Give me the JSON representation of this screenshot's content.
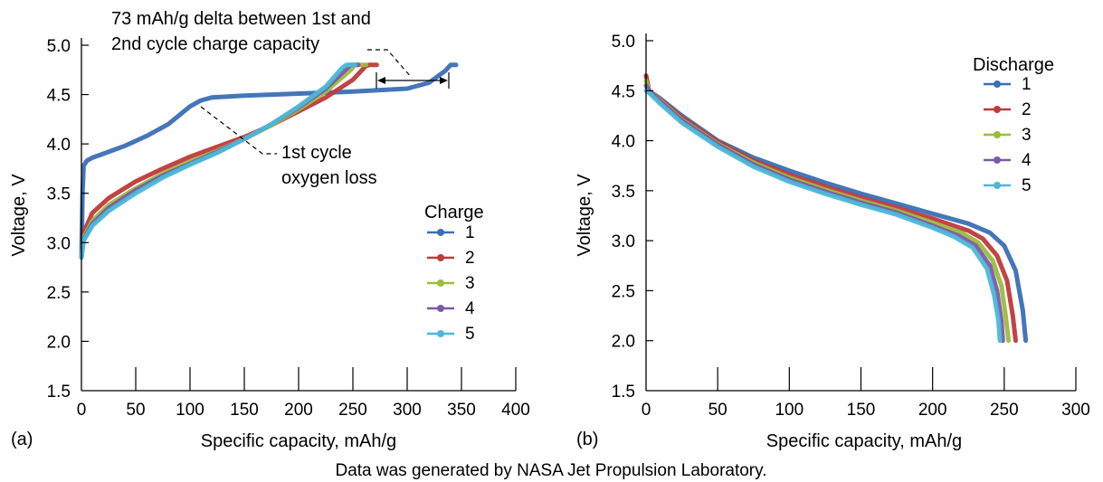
{
  "caption": "Data was generated by NASA Jet Propulsion Laboratory.",
  "chart_data": [
    {
      "panel_label": "(a)",
      "type": "line",
      "title": "",
      "xlabel": "Specific capacity, mAh/g",
      "ylabel": "Voltage, V",
      "xlim": [
        0,
        400
      ],
      "ylim": [
        1.5,
        5.0
      ],
      "xticks": [
        0,
        50,
        100,
        150,
        200,
        250,
        300,
        350,
        400
      ],
      "yticks": [
        1.5,
        2.0,
        2.5,
        3.0,
        3.5,
        4.0,
        4.5,
        5.0
      ],
      "grid": false,
      "legend": {
        "title": "Charge",
        "position": "right"
      },
      "annotations": [
        {
          "text_lines": [
            "73 mAh/g delta between 1st and",
            "2nd cycle charge capacity"
          ]
        },
        {
          "text_lines": [
            "1st cycle",
            "oxygen loss"
          ]
        }
      ],
      "series": [
        {
          "name": "1",
          "color": "#3a6fb5",
          "x": [
            0,
            1,
            2,
            5,
            10,
            20,
            40,
            60,
            80,
            100,
            110,
            120,
            150,
            200,
            250,
            300,
            320,
            335,
            340,
            345
          ],
          "y": [
            2.85,
            3.5,
            3.78,
            3.83,
            3.86,
            3.9,
            3.98,
            4.08,
            4.2,
            4.38,
            4.44,
            4.47,
            4.49,
            4.51,
            4.53,
            4.56,
            4.62,
            4.74,
            4.8,
            4.8
          ]
        },
        {
          "name": "2",
          "color": "#c0393b",
          "x": [
            0,
            2,
            10,
            25,
            50,
            75,
            100,
            125,
            150,
            175,
            200,
            225,
            250,
            262,
            265,
            272
          ],
          "y": [
            2.85,
            3.1,
            3.3,
            3.45,
            3.62,
            3.75,
            3.87,
            3.97,
            4.07,
            4.19,
            4.33,
            4.47,
            4.65,
            4.79,
            4.8,
            4.8
          ]
        },
        {
          "name": "3",
          "color": "#9dbb3e",
          "x": [
            0,
            2,
            10,
            25,
            50,
            75,
            100,
            125,
            150,
            175,
            200,
            225,
            248,
            252,
            262
          ],
          "y": [
            2.85,
            3.05,
            3.22,
            3.38,
            3.55,
            3.7,
            3.82,
            3.93,
            4.05,
            4.19,
            4.35,
            4.53,
            4.75,
            4.8,
            4.8
          ]
        },
        {
          "name": "4",
          "color": "#7b5aa6",
          "x": [
            0,
            2,
            10,
            25,
            50,
            75,
            100,
            125,
            150,
            175,
            200,
            225,
            244,
            248,
            255
          ],
          "y": [
            2.85,
            3.03,
            3.19,
            3.35,
            3.53,
            3.68,
            3.8,
            3.92,
            4.05,
            4.2,
            4.37,
            4.56,
            4.76,
            4.8,
            4.8
          ]
        },
        {
          "name": "5",
          "color": "#4bb8d8",
          "x": [
            0,
            2,
            10,
            25,
            50,
            75,
            100,
            125,
            150,
            175,
            200,
            225,
            240,
            244,
            252
          ],
          "y": [
            2.85,
            3.02,
            3.17,
            3.32,
            3.5,
            3.66,
            3.79,
            3.91,
            4.05,
            4.2,
            4.38,
            4.58,
            4.77,
            4.8,
            4.8
          ]
        }
      ]
    },
    {
      "panel_label": "(b)",
      "type": "line",
      "title": "",
      "xlabel": "Specific capacity, mAh/g",
      "ylabel": "Voltage, V",
      "xlim": [
        0,
        300
      ],
      "ylim": [
        1.5,
        5.0
      ],
      "xticks": [
        0,
        50,
        100,
        150,
        200,
        250,
        300
      ],
      "yticks": [
        1.5,
        2.0,
        2.5,
        3.0,
        3.5,
        4.0,
        4.5,
        5.0
      ],
      "grid": false,
      "legend": {
        "title": "Discharge",
        "position": "top-right"
      },
      "series": [
        {
          "name": "1",
          "color": "#3a6fb5",
          "x": [
            0,
            2,
            10,
            25,
            50,
            75,
            100,
            125,
            150,
            175,
            200,
            225,
            240,
            250,
            258,
            263,
            265
          ],
          "y": [
            4.65,
            4.5,
            4.42,
            4.25,
            4.0,
            3.83,
            3.7,
            3.58,
            3.47,
            3.37,
            3.27,
            3.17,
            3.08,
            2.95,
            2.7,
            2.3,
            2.0
          ]
        },
        {
          "name": "2",
          "color": "#c0393b",
          "x": [
            0,
            2,
            10,
            25,
            50,
            75,
            100,
            125,
            150,
            175,
            200,
            225,
            235,
            245,
            252,
            256,
            258
          ],
          "y": [
            4.65,
            4.5,
            4.41,
            4.23,
            3.99,
            3.8,
            3.66,
            3.54,
            3.43,
            3.33,
            3.22,
            3.1,
            3.02,
            2.85,
            2.6,
            2.25,
            2.0
          ]
        },
        {
          "name": "3",
          "color": "#9dbb3e",
          "x": [
            0,
            2,
            10,
            25,
            50,
            75,
            100,
            125,
            150,
            175,
            200,
            220,
            232,
            242,
            248,
            251,
            253
          ],
          "y": [
            4.6,
            4.5,
            4.4,
            4.21,
            3.97,
            3.78,
            3.63,
            3.51,
            3.4,
            3.3,
            3.18,
            3.08,
            2.98,
            2.8,
            2.55,
            2.25,
            2.0
          ]
        },
        {
          "name": "4",
          "color": "#7b5aa6",
          "x": [
            0,
            2,
            10,
            25,
            50,
            75,
            100,
            125,
            150,
            175,
            200,
            218,
            230,
            240,
            245,
            248,
            249
          ],
          "y": [
            4.55,
            4.5,
            4.39,
            4.2,
            3.96,
            3.76,
            3.61,
            3.49,
            3.38,
            3.28,
            3.15,
            3.05,
            2.95,
            2.75,
            2.5,
            2.2,
            2.0
          ]
        },
        {
          "name": "5",
          "color": "#4bb8d8",
          "x": [
            0,
            2,
            10,
            25,
            50,
            75,
            100,
            125,
            150,
            175,
            200,
            215,
            228,
            238,
            243,
            246,
            247
          ],
          "y": [
            4.5,
            4.48,
            4.37,
            4.18,
            3.94,
            3.74,
            3.59,
            3.47,
            3.36,
            3.26,
            3.13,
            3.04,
            2.93,
            2.72,
            2.45,
            2.2,
            2.0
          ]
        }
      ]
    }
  ]
}
